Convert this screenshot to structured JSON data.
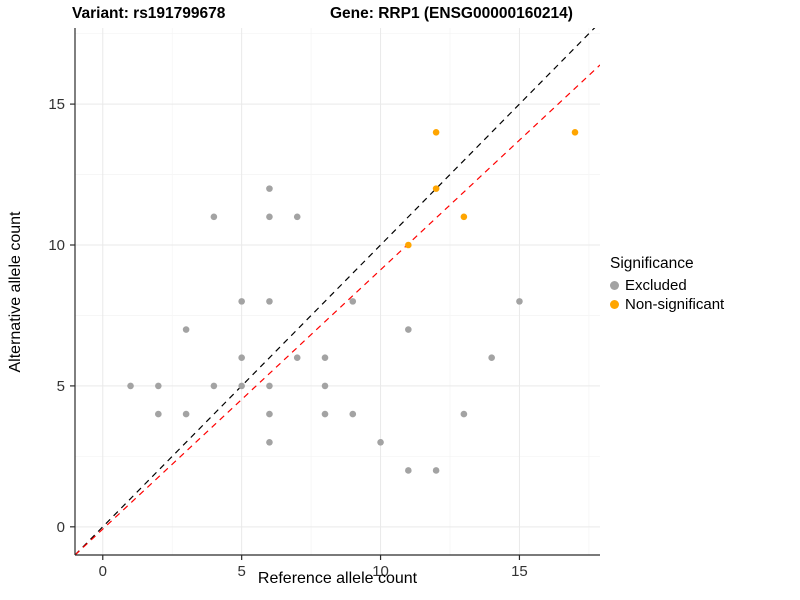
{
  "header": {
    "variant_title": "Variant: rs191799678",
    "gene_title": "Gene: RRP1 (ENSG00000160214)"
  },
  "chart_data": {
    "type": "scatter",
    "xlabel": "Reference allele count",
    "ylabel": "Alternative allele count",
    "xlim": [
      -1,
      17.9
    ],
    "ylim": [
      -1,
      17.7
    ],
    "xticks": [
      0,
      5,
      10,
      15
    ],
    "yticks": [
      0,
      5,
      10,
      15
    ],
    "xminor": [
      2.5,
      7.5,
      12.5,
      17.5
    ],
    "yminor": [
      2.5,
      7.5,
      12.5,
      17.5
    ],
    "grid": true,
    "series": [
      {
        "name": "Excluded",
        "color": "#a3a3a3",
        "points": [
          [
            1,
            5
          ],
          [
            2,
            5
          ],
          [
            2,
            4
          ],
          [
            3,
            7
          ],
          [
            3,
            4
          ],
          [
            4,
            11
          ],
          [
            4,
            5
          ],
          [
            5,
            8
          ],
          [
            5,
            6
          ],
          [
            5,
            5
          ],
          [
            6,
            12
          ],
          [
            6,
            11
          ],
          [
            6,
            8
          ],
          [
            6,
            5
          ],
          [
            6,
            4
          ],
          [
            6,
            3
          ],
          [
            7,
            11
          ],
          [
            7,
            6
          ],
          [
            8,
            6
          ],
          [
            8,
            5
          ],
          [
            8,
            4
          ],
          [
            9,
            8
          ],
          [
            9,
            4
          ],
          [
            10,
            3
          ],
          [
            11,
            7
          ],
          [
            11,
            2
          ],
          [
            12,
            2
          ],
          [
            13,
            4
          ],
          [
            14,
            6
          ],
          [
            15,
            8
          ]
        ]
      },
      {
        "name": "Non-significant",
        "color": "#FFA500",
        "points": [
          [
            11,
            10
          ],
          [
            12,
            12
          ],
          [
            12,
            14
          ],
          [
            13,
            11
          ],
          [
            17,
            14
          ]
        ]
      }
    ],
    "lines": [
      {
        "name": "identity",
        "slope": 1,
        "intercept": 0,
        "color": "#000000"
      },
      {
        "name": "regression",
        "slope": 0.92,
        "intercept": -0.08,
        "color": "#FF0000"
      }
    ],
    "legend": {
      "title": "Significance",
      "position": "right",
      "items": [
        {
          "label": "Excluded",
          "color": "#a3a3a3"
        },
        {
          "label": "Non-significant",
          "color": "#FFA500"
        }
      ]
    }
  }
}
